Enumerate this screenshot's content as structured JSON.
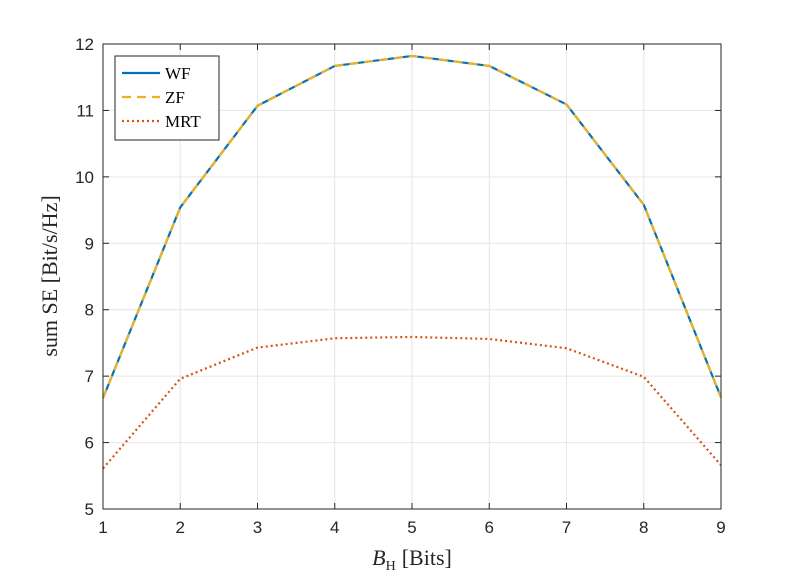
{
  "chart_data": {
    "type": "line",
    "x": [
      1,
      2,
      3,
      4,
      5,
      6,
      7,
      8,
      9
    ],
    "series": [
      {
        "name": "WF",
        "values": [
          6.67,
          9.54,
          11.07,
          11.67,
          11.82,
          11.67,
          11.09,
          9.58,
          6.68
        ],
        "color": "#0072BD",
        "style": "solid"
      },
      {
        "name": "ZF",
        "values": [
          6.67,
          9.54,
          11.07,
          11.67,
          11.82,
          11.67,
          11.09,
          9.58,
          6.68
        ],
        "color": "#EDB120",
        "style": "dashed"
      },
      {
        "name": "MRT",
        "values": [
          5.61,
          6.96,
          7.43,
          7.57,
          7.59,
          7.56,
          7.42,
          6.99,
          5.66
        ],
        "color": "#D95319",
        "style": "dotted"
      }
    ],
    "xlabel_main": "B",
    "xlabel_sub": "H",
    "xlabel_unit": "[Bits]",
    "ylabel": "sum SE [Bit/s/Hz]",
    "xlim": [
      1,
      9
    ],
    "ylim": [
      5,
      12
    ],
    "xticks": [
      "1",
      "2",
      "3",
      "4",
      "5",
      "6",
      "7",
      "8",
      "9"
    ],
    "yticks": [
      "5",
      "6",
      "7",
      "8",
      "9",
      "10",
      "11",
      "12"
    ],
    "grid": true,
    "legend_position": "top-left"
  }
}
